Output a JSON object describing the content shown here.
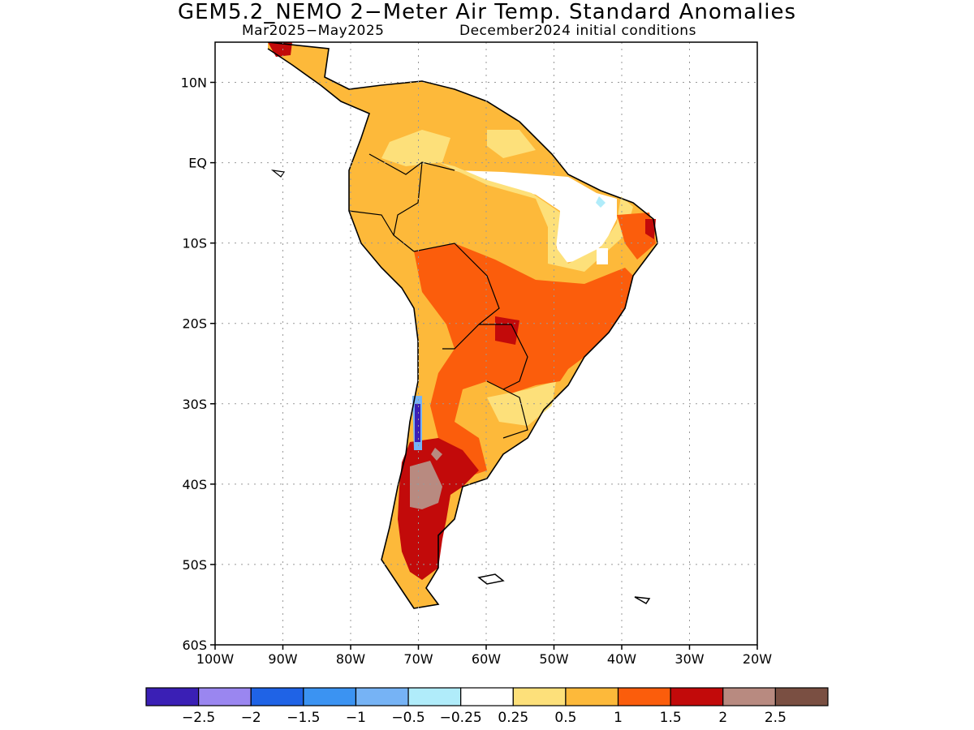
{
  "figure": {
    "title": "GEM5.2_NEMO 2−Meter Air Temp. Standard Anomalies",
    "period": "Mar2025−May2025",
    "init": "December2024 initial conditions"
  },
  "map": {
    "lon_range": [
      -100,
      -20
    ],
    "lat_range": [
      -60,
      15
    ],
    "lat_ticks": [
      {
        "value": 10,
        "label": "10N"
      },
      {
        "value": 0,
        "label": "EQ"
      },
      {
        "value": -10,
        "label": "10S"
      },
      {
        "value": -20,
        "label": "20S"
      },
      {
        "value": -30,
        "label": "30S"
      },
      {
        "value": -40,
        "label": "40S"
      },
      {
        "value": -50,
        "label": "50S"
      },
      {
        "value": -60,
        "label": "60S"
      }
    ],
    "lon_ticks": [
      {
        "value": -100,
        "label": "100W"
      },
      {
        "value": -90,
        "label": "90W"
      },
      {
        "value": -80,
        "label": "80W"
      },
      {
        "value": -70,
        "label": "70W"
      },
      {
        "value": -60,
        "label": "60W"
      },
      {
        "value": -50,
        "label": "50W"
      },
      {
        "value": -40,
        "label": "40W"
      },
      {
        "value": -30,
        "label": "30W"
      },
      {
        "value": -20,
        "label": "20W"
      }
    ],
    "grid": true
  },
  "colorbar": {
    "colors": [
      "#3a1fb5",
      "#9a86f0",
      "#1f63e6",
      "#3b93f2",
      "#76b3f5",
      "#b0ecfa",
      "#ffffff",
      "#fde07a",
      "#fdb93a",
      "#fb5d0c",
      "#c20a0a",
      "#b88a80",
      "#7a4f42"
    ],
    "labels": [
      "−2.5",
      "−2",
      "−1.5",
      "−1",
      "−0.5",
      "−0.25",
      "0.25",
      "0.5",
      "1",
      "1.5",
      "2",
      "2.5"
    ]
  }
}
